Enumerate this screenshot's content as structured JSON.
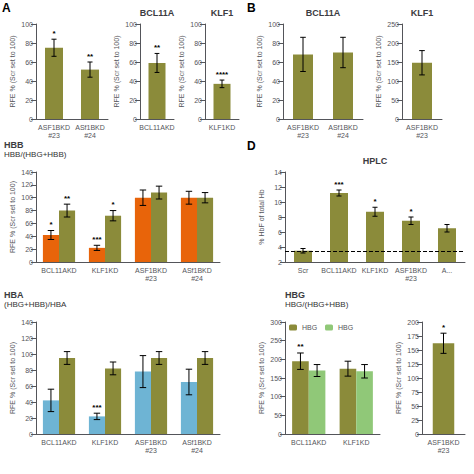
{
  "chart_data": [
    {
      "type": "bar",
      "annotations": [
        "A"
      ],
      "categories": [
        "ASF1BKD\n#23",
        "ASf1BKD\n#24"
      ],
      "series": [
        {
          "color": "#8B8B3A",
          "values": [
            75,
            52
          ],
          "errors": [
            9,
            8
          ],
          "stars": [
            "*",
            "**"
          ]
        }
      ],
      "ylabel": "RFE % (Scr set to 100)",
      "ylim": [
        0,
        100
      ],
      "yticks": [
        0,
        20,
        40,
        60,
        80,
        100
      ],
      "grid": false
    },
    {
      "type": "bar",
      "title": "BCL11A",
      "categories": [
        "BCL11AKD"
      ],
      "series": [
        {
          "color": "#8B8B3A",
          "values": [
            59
          ],
          "errors": [
            10
          ],
          "stars": [
            "**"
          ]
        }
      ],
      "ylabel": "RFE % (Scr set to 100)",
      "ylim": [
        0,
        100
      ],
      "yticks": [
        0,
        20,
        40,
        60,
        80,
        100
      ],
      "grid": false
    },
    {
      "type": "bar",
      "title": "KLF1",
      "categories": [
        "KLF1KD"
      ],
      "series": [
        {
          "color": "#8B8B3A",
          "values": [
            37
          ],
          "errors": [
            4
          ],
          "stars": [
            "****"
          ]
        }
      ],
      "ylabel": "RFE % (Scr set to 100)",
      "ylim": [
        0,
        100
      ],
      "yticks": [
        0,
        20,
        40,
        60,
        80,
        100
      ],
      "grid": false
    },
    {
      "type": "bar",
      "annotations": [
        "B"
      ],
      "title": "BCL11A",
      "categories": [
        "ASF1BKD\n#23",
        "ASf1BKD\n#24"
      ],
      "series": [
        {
          "color": "#8B8B3A",
          "values": [
            68,
            70
          ],
          "errors": [
            18,
            16
          ]
        }
      ],
      "ylabel": "RFE % (Scr set to 100)",
      "ylim": [
        0,
        100
      ],
      "yticks": [
        0,
        20,
        40,
        60,
        80,
        100
      ],
      "grid": false
    },
    {
      "type": "bar",
      "title": "KLF1",
      "categories": [
        "ASF1BKD\n#23"
      ],
      "series": [
        {
          "color": "#8B8B3A",
          "values": [
            148
          ],
          "errors": [
            32
          ]
        }
      ],
      "ylabel": "RFE % (Scr set to 100)",
      "ylim": [
        0,
        250
      ],
      "yticks": [
        0,
        50,
        100,
        150,
        200,
        250
      ],
      "grid": false
    },
    {
      "type": "bar",
      "title": "HBB",
      "subtitle": "HBB/(HBG+HBB)",
      "categories": [
        "BCL11AKD",
        "KLF1KD",
        "ASF1BKD\n#23",
        "ASf1BKD\n#24"
      ],
      "series": [
        {
          "color": "#E8640A",
          "values": [
            42,
            22,
            100,
            100
          ],
          "errors": [
            7,
            4,
            12,
            10
          ],
          "stars": [
            "*",
            "***",
            null,
            null
          ]
        },
        {
          "color": "#8B8B3A",
          "values": [
            80,
            72,
            108,
            100
          ],
          "errors": [
            10,
            8,
            10,
            8
          ],
          "stars": [
            "**",
            "*",
            null,
            null
          ]
        }
      ],
      "ylabel": "RFE % (Scr set to 100)",
      "ylim": [
        0,
        140
      ],
      "yticks": [
        0,
        20,
        40,
        60,
        80,
        100,
        120,
        140
      ],
      "grid": false
    },
    {
      "type": "bar",
      "annotations": [
        "D"
      ],
      "title": "HPLC",
      "categories": [
        "Scr",
        "BCL11AKD",
        "KLF1KD",
        "ASF1BKD\n#23",
        "A..."
      ],
      "series": [
        {
          "color": "#8B8B3A",
          "values": [
            3.5,
            11.2,
            8.7,
            7.5,
            6.5
          ],
          "errors": [
            0.3,
            0.4,
            0.6,
            0.5,
            0.5
          ],
          "stars": [
            null,
            "***",
            "*",
            "*",
            null
          ]
        }
      ],
      "hline": {
        "y": 3.5,
        "line_style": "dashed"
      },
      "ylabel": "% HbF of total Hb",
      "ylim": [
        2,
        14
      ],
      "yticks": [
        2,
        4,
        6,
        8,
        10,
        12,
        14
      ],
      "grid": false
    },
    {
      "type": "bar",
      "title": "HBA",
      "subtitle": "(HBG+HBB)/HBA",
      "categories": [
        "BCL11AKD",
        "KLF1KD",
        "ASF1BKD\n#23",
        "ASf1BKD\n#24"
      ],
      "series": [
        {
          "color": "#6EB4D4",
          "values": [
            42,
            22,
            78,
            65
          ],
          "errors": [
            14,
            4,
            20,
            16
          ],
          "stars": [
            null,
            "***",
            null,
            null
          ]
        },
        {
          "color": "#8B8B3A",
          "values": [
            95,
            82,
            95,
            95
          ],
          "errors": [
            8,
            8,
            8,
            8
          ]
        }
      ],
      "ylabel": "RFE % (Scr set to 100)",
      "ylim": [
        0,
        140
      ],
      "yticks": [
        0,
        20,
        40,
        60,
        80,
        100,
        120,
        140
      ],
      "grid": false
    },
    {
      "type": "bar",
      "title": "HBG",
      "subtitle": "HBG/(HBG+HBB)",
      "categories": [
        "BCL11AKD",
        "KLF1KD"
      ],
      "series": [
        {
          "name": "HBG",
          "color": "#8B8B3A",
          "values": [
            195,
            175
          ],
          "errors": [
            22,
            20
          ],
          "stars": [
            "**",
            null
          ]
        },
        {
          "name": "HBG",
          "color": "#90C878",
          "values": [
            170,
            168
          ],
          "errors": [
            16,
            18
          ]
        }
      ],
      "legend": "upper left",
      "ylabel": "RFE % (Scr set to 100)",
      "ylim": [
        0,
        300
      ],
      "yticks": [
        0,
        50,
        100,
        150,
        200,
        250,
        300
      ],
      "grid": false
    },
    {
      "type": "bar",
      "categories": [
        "ASF1BKD\n#23"
      ],
      "series": [
        {
          "color": "#8B8B3A",
          "values": [
            162
          ],
          "errors": [
            18
          ],
          "stars": [
            "*"
          ]
        }
      ],
      "ylabel": "RFE % (Scr set to 100)",
      "ylim": [
        0,
        200
      ],
      "yticks": [
        0,
        25,
        50,
        75,
        100,
        125,
        150,
        175,
        200
      ],
      "grid": false
    }
  ]
}
